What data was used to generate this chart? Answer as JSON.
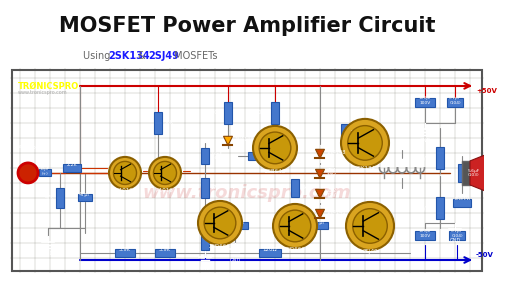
{
  "title": "MOSFET Power Amplifier Circuit",
  "subtitle_parts": [
    {
      "text": "Using ",
      "bold": false,
      "color": "#555555"
    },
    {
      "text": "2SK134",
      "bold": true,
      "color": "#1a1aff"
    },
    {
      "text": " & ",
      "bold": false,
      "color": "#555555"
    },
    {
      "text": "2SJ49",
      "bold": true,
      "color": "#1a1aff"
    },
    {
      "text": " MOSFETs",
      "bold": false,
      "color": "#555555"
    }
  ],
  "bg_color": "#ffffff",
  "circuit_bg": "#2a2a1a",
  "title_color": "#111111",
  "logo_text": "TRØNICSPRO",
  "logo_url": "www.tronicspro.com",
  "wire_red": "#cc0000",
  "wire_blue": "#0000cc",
  "wire_gray": "#888888",
  "wire_dark": "#666666",
  "comp_blue": "#4477cc",
  "comp_fill": "#5588dd",
  "transistor_gold": "#DAA520",
  "transistor_ring": "#8B6000",
  "voltage_top": "+50V",
  "voltage_bot": "-50V",
  "watermark": "www.tronicspro.com"
}
